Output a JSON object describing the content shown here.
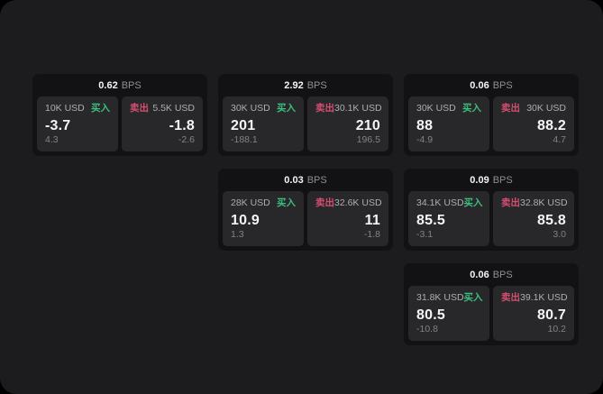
{
  "colors": {
    "panel_bg": "#1c1c1e",
    "card_bg": "#121214",
    "subcard_bg": "#28282a",
    "buy_green": "#3cbe7e",
    "sell_red": "#d44f6f"
  },
  "cards": [
    {
      "col": 1,
      "row": 1,
      "bps": "0.62",
      "bps_unit": "BPS",
      "buy": {
        "amount": "10K USD",
        "label": "买入",
        "value": "-3.7",
        "secondary": "4.3"
      },
      "sell": {
        "label": "卖出",
        "amount": "5.5K USD",
        "value": "-1.8",
        "secondary": "-2.6"
      }
    },
    {
      "col": 2,
      "row": 1,
      "bps": "2.92",
      "bps_unit": "BPS",
      "buy": {
        "amount": "30K USD",
        "label": "买入",
        "value": "201",
        "secondary": "-188.1"
      },
      "sell": {
        "label": "卖出",
        "amount": "30.1K USD",
        "value": "210",
        "secondary": "196.5"
      }
    },
    {
      "col": 3,
      "row": 1,
      "bps": "0.06",
      "bps_unit": "BPS",
      "buy": {
        "amount": "30K USD",
        "label": "买入",
        "value": "88",
        "secondary": "-4.9"
      },
      "sell": {
        "label": "卖出",
        "amount": "30K USD",
        "value": "88.2",
        "secondary": "4.7"
      }
    },
    {
      "col": 2,
      "row": 2,
      "bps": "0.03",
      "bps_unit": "BPS",
      "buy": {
        "amount": "28K USD",
        "label": "买入",
        "value": "10.9",
        "secondary": "1.3"
      },
      "sell": {
        "label": "卖出",
        "amount": "32.6K USD",
        "value": "11",
        "secondary": "-1.8"
      }
    },
    {
      "col": 3,
      "row": 2,
      "bps": "0.09",
      "bps_unit": "BPS",
      "buy": {
        "amount": "34.1K USD",
        "label": "买入",
        "value": "85.5",
        "secondary": "-3.1"
      },
      "sell": {
        "label": "卖出",
        "amount": "32.8K USD",
        "value": "85.8",
        "secondary": "3.0"
      }
    },
    {
      "col": 3,
      "row": 3,
      "bps": "0.06",
      "bps_unit": "BPS",
      "buy": {
        "amount": "31.8K USD",
        "label": "买入",
        "value": "80.5",
        "secondary": "-10.8"
      },
      "sell": {
        "label": "卖出",
        "amount": "39.1K USD",
        "value": "80.7",
        "secondary": "10.2"
      }
    }
  ]
}
